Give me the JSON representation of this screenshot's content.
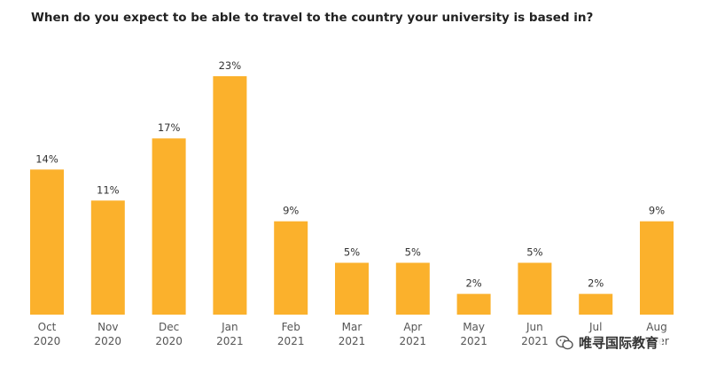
{
  "chart_data": {
    "type": "bar",
    "title": "When do you expect to be able to travel to the country your university is based in?",
    "categories": [
      [
        "Oct",
        "2020"
      ],
      [
        "Nov",
        "2020"
      ],
      [
        "Dec",
        "2020"
      ],
      [
        "Jan",
        "2021"
      ],
      [
        "Feb",
        "2021"
      ],
      [
        "Mar",
        "2021"
      ],
      [
        "Apr",
        "2021"
      ],
      [
        "May",
        "2021"
      ],
      [
        "Jun",
        "2021"
      ],
      [
        "Jul",
        "2021"
      ],
      [
        "Aug",
        "later"
      ]
    ],
    "values": [
      14,
      11,
      17,
      23,
      9,
      5,
      5,
      2,
      5,
      2,
      9
    ],
    "value_labels": [
      "14%",
      "11%",
      "17%",
      "23%",
      "9%",
      "5%",
      "5%",
      "2%",
      "5%",
      "2%",
      "9%"
    ],
    "unit": "%",
    "ylim": [
      0,
      23
    ],
    "grid": false,
    "legend": "none",
    "bar_color": "#fbb12c"
  },
  "watermark": {
    "icon": "wechat-icon",
    "text": "唯寻国际教育"
  }
}
